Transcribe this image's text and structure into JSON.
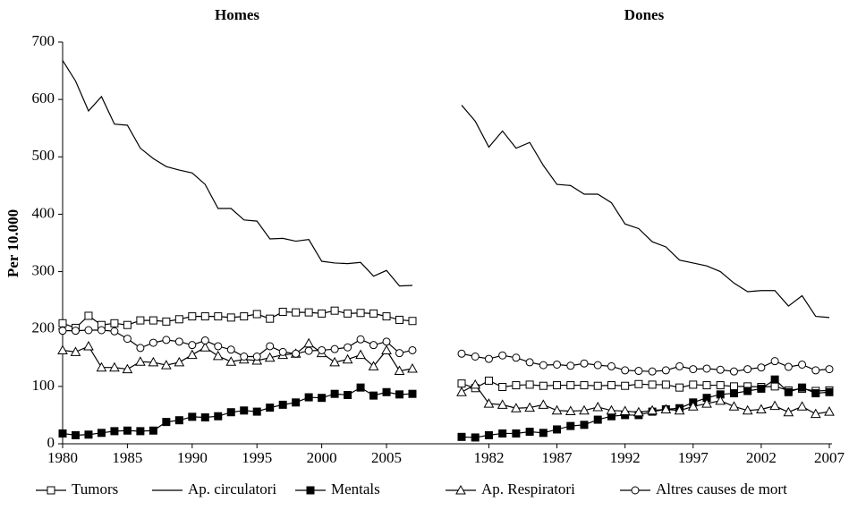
{
  "chart_data": [
    {
      "type": "line",
      "title": "Homes",
      "y_label": "Per 10.000",
      "x": [
        1980,
        1981,
        1982,
        1983,
        1984,
        1985,
        1986,
        1987,
        1988,
        1989,
        1990,
        1991,
        1992,
        1993,
        1994,
        1995,
        1996,
        1997,
        1998,
        1999,
        2000,
        2001,
        2002,
        2003,
        2004,
        2005,
        2006,
        2007
      ],
      "xlim": [
        1980,
        2007
      ],
      "xticks": [
        1980,
        1985,
        1990,
        1995,
        2000,
        2005
      ],
      "ylim": [
        0,
        700
      ],
      "yticks": [
        0,
        100,
        200,
        300,
        400,
        500,
        600,
        700
      ],
      "series": [
        {
          "name": "Tumors",
          "color": "#000000",
          "marker": "square-open",
          "values": [
            210,
            202,
            223,
            207,
            210,
            207,
            215,
            215,
            213,
            217,
            222,
            222,
            222,
            220,
            222,
            226,
            218,
            230,
            229,
            229,
            227,
            232,
            227,
            228,
            227,
            222,
            216,
            214
          ]
        },
        {
          "name": "Ap. circulatori",
          "color": "#000000",
          "marker": "none",
          "values": [
            668,
            632,
            580,
            605,
            557,
            555,
            515,
            497,
            483,
            477,
            472,
            452,
            410,
            410,
            390,
            388,
            357,
            358,
            353,
            356,
            318,
            315,
            314,
            316,
            292,
            302,
            275,
            276
          ]
        },
        {
          "name": "Mentals",
          "color": "#000000",
          "marker": "square-filled",
          "values": [
            18,
            15,
            16,
            19,
            22,
            23,
            22,
            23,
            38,
            41,
            47,
            46,
            48,
            55,
            58,
            56,
            63,
            68,
            72,
            81,
            80,
            87,
            85,
            98,
            84,
            90,
            86,
            87
          ]
        },
        {
          "name": "Ap. Respiratori",
          "color": "#000000",
          "marker": "triangle-open",
          "values": [
            163,
            160,
            170,
            133,
            133,
            130,
            143,
            142,
            137,
            142,
            155,
            168,
            153,
            143,
            147,
            145,
            150,
            155,
            157,
            175,
            158,
            142,
            147,
            155,
            135,
            163,
            127,
            131
          ]
        },
        {
          "name": "Altres causes de mort",
          "color": "#000000",
          "marker": "circle-open",
          "values": [
            197,
            197,
            198,
            198,
            196,
            183,
            167,
            176,
            181,
            178,
            172,
            180,
            170,
            164,
            152,
            152,
            170,
            160,
            157,
            162,
            163,
            165,
            168,
            182,
            172,
            178,
            158,
            163
          ]
        }
      ]
    },
    {
      "type": "line",
      "title": "Dones",
      "x": [
        1980,
        1981,
        1982,
        1983,
        1984,
        1985,
        1986,
        1987,
        1988,
        1989,
        1990,
        1991,
        1992,
        1993,
        1994,
        1995,
        1996,
        1997,
        1998,
        1999,
        2000,
        2001,
        2002,
        2003,
        2004,
        2005,
        2006,
        2007
      ],
      "xlim": [
        1980,
        2007
      ],
      "xticks": [
        1982,
        1987,
        1992,
        1997,
        2002,
        2007
      ],
      "ylim": [
        0,
        700
      ],
      "series": [
        {
          "name": "Tumors",
          "color": "#000000",
          "marker": "square-open",
          "values": [
            105,
            97,
            110,
            99,
            102,
            103,
            101,
            102,
            102,
            102,
            101,
            102,
            101,
            104,
            103,
            103,
            98,
            103,
            102,
            102,
            100,
            100,
            99,
            100,
            93,
            96,
            92,
            93
          ]
        },
        {
          "name": "Ap. circulatori",
          "color": "#000000",
          "marker": "none",
          "values": [
            590,
            562,
            517,
            545,
            515,
            525,
            485,
            452,
            450,
            435,
            435,
            420,
            383,
            375,
            352,
            343,
            320,
            315,
            310,
            300,
            280,
            265,
            267,
            267,
            240,
            258,
            222,
            220
          ]
        },
        {
          "name": "Mentals",
          "color": "#000000",
          "marker": "square-filled",
          "values": [
            12,
            11,
            15,
            18,
            18,
            21,
            19,
            25,
            31,
            33,
            42,
            48,
            50,
            50,
            56,
            60,
            62,
            72,
            80,
            86,
            88,
            92,
            96,
            112,
            90,
            98,
            88,
            90
          ]
        },
        {
          "name": "Ap. Respiratori",
          "color": "#000000",
          "marker": "triangle-open",
          "values": [
            90,
            103,
            70,
            68,
            62,
            63,
            68,
            58,
            57,
            58,
            64,
            58,
            57,
            55,
            58,
            60,
            58,
            65,
            70,
            75,
            65,
            58,
            60,
            66,
            55,
            65,
            52,
            56
          ]
        },
        {
          "name": "Altres causes de mort",
          "color": "#000000",
          "marker": "circle-open",
          "values": [
            157,
            152,
            148,
            154,
            150,
            142,
            137,
            138,
            136,
            140,
            137,
            135,
            128,
            127,
            126,
            128,
            135,
            130,
            131,
            129,
            126,
            130,
            133,
            144,
            134,
            138,
            128,
            130
          ]
        }
      ]
    }
  ]
}
